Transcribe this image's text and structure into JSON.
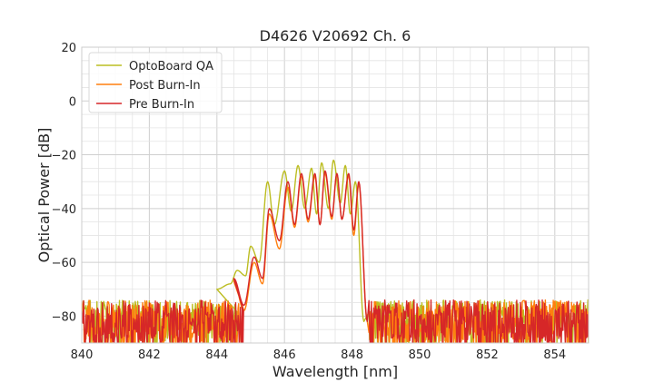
{
  "chart_data": {
    "type": "line",
    "title": "D4626 V20692 Ch. 6",
    "xlabel": "Wavelength [nm]",
    "ylabel": "Optical Power [dB]",
    "xlim": [
      840,
      855
    ],
    "ylim": [
      -90,
      20
    ],
    "xticks": [
      840,
      842,
      844,
      846,
      848,
      850,
      852,
      854
    ],
    "yticks": [
      -80,
      -60,
      -40,
      -20,
      0,
      20
    ],
    "xtick_labels": [
      "840",
      "842",
      "844",
      "846",
      "848",
      "850",
      "852",
      "854"
    ],
    "ytick_labels": [
      "−80",
      "−60",
      "−40",
      "−20",
      "0",
      "20"
    ],
    "grid": true,
    "legend_position": "top-left",
    "noise_floor_level": -80,
    "series": [
      {
        "name": "OptoBoard QA",
        "color": "#bcbd22",
        "noise_range": [
          840,
          844.6
        ],
        "noise_range_2": [
          848.5,
          855
        ],
        "peaks": [
          [
            844.0,
            -70
          ],
          [
            844.6,
            -63
          ],
          [
            845.0,
            -54
          ],
          [
            845.5,
            -30
          ],
          [
            846.0,
            -26
          ],
          [
            846.4,
            -24
          ],
          [
            846.8,
            -25
          ],
          [
            847.1,
            -23
          ],
          [
            847.45,
            -22
          ],
          [
            847.8,
            -24
          ],
          [
            848.1,
            -30
          ]
        ],
        "troughs": [
          [
            844.4,
            -68
          ],
          [
            844.85,
            -65
          ],
          [
            845.25,
            -60
          ],
          [
            845.7,
            -46
          ],
          [
            846.2,
            -41
          ],
          [
            846.6,
            -40
          ],
          [
            846.95,
            -42
          ],
          [
            847.3,
            -40
          ],
          [
            847.65,
            -38
          ],
          [
            847.95,
            -42
          ],
          [
            848.35,
            -82
          ]
        ]
      },
      {
        "name": "Post Burn-In",
        "color": "#ff7f0e",
        "noise_range": [
          840,
          844.8
        ],
        "noise_range_2": [
          848.5,
          855
        ],
        "peaks": [
          [
            844.5,
            -67
          ],
          [
            845.1,
            -60
          ],
          [
            845.55,
            -42
          ],
          [
            846.1,
            -32
          ],
          [
            846.5,
            -28
          ],
          [
            846.9,
            -28
          ],
          [
            847.2,
            -27
          ],
          [
            847.55,
            -27
          ],
          [
            847.9,
            -28
          ],
          [
            848.2,
            -31
          ]
        ],
        "troughs": [
          [
            844.8,
            -78
          ],
          [
            845.35,
            -68
          ],
          [
            845.85,
            -55
          ],
          [
            846.3,
            -47
          ],
          [
            846.7,
            -45
          ],
          [
            847.05,
            -46
          ],
          [
            847.4,
            -44
          ],
          [
            847.7,
            -44
          ],
          [
            848.05,
            -50
          ],
          [
            848.45,
            -82
          ]
        ]
      },
      {
        "name": "Pre Burn-In",
        "color": "#d62728",
        "noise_range": [
          840,
          844.8
        ],
        "noise_range_2": [
          848.5,
          855
        ],
        "peaks": [
          [
            844.5,
            -66
          ],
          [
            845.1,
            -58
          ],
          [
            845.55,
            -40
          ],
          [
            846.1,
            -30
          ],
          [
            846.5,
            -27
          ],
          [
            846.9,
            -27
          ],
          [
            847.2,
            -26
          ],
          [
            847.55,
            -27
          ],
          [
            847.9,
            -27
          ],
          [
            848.2,
            -30
          ]
        ],
        "troughs": [
          [
            844.8,
            -76
          ],
          [
            845.35,
            -66
          ],
          [
            845.85,
            -52
          ],
          [
            846.3,
            -46
          ],
          [
            846.7,
            -44
          ],
          [
            847.05,
            -46
          ],
          [
            847.4,
            -43
          ],
          [
            847.7,
            -44
          ],
          [
            848.05,
            -48
          ],
          [
            848.45,
            -82
          ]
        ]
      }
    ]
  }
}
